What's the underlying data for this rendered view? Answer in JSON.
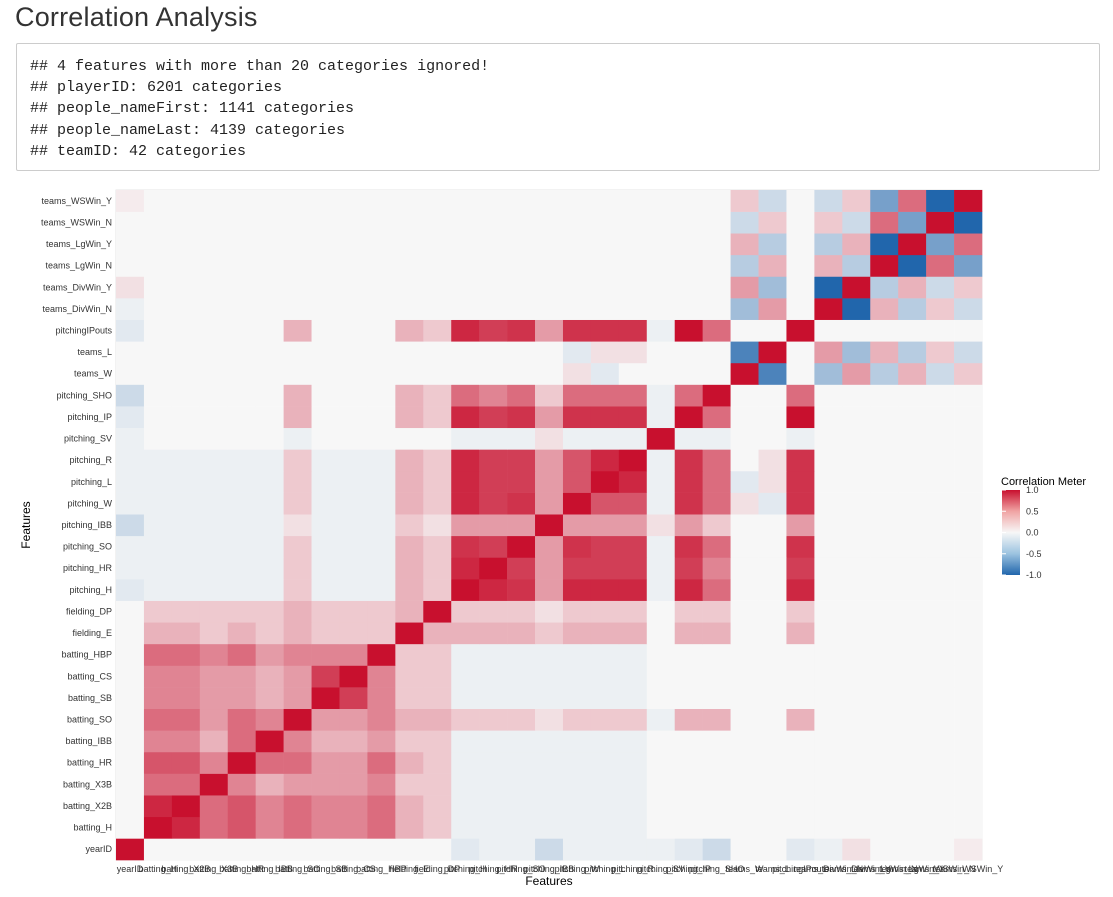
{
  "page": {
    "title": "Correlation Analysis",
    "console_lines": [
      "## 4 features with more than 20 categories ignored!",
      "## playerID: 6201 categories",
      "## people_nameFirst: 1141 categories",
      "## people_nameLast: 4139 categories",
      "## teamID: 42 categories"
    ]
  },
  "chart_data": {
    "type": "heatmap",
    "title": "",
    "xlabel": "Features",
    "ylabel": "Features",
    "features": [
      "yearID",
      "batting_H",
      "batting_X2B",
      "batting_X3B",
      "batting_HR",
      "batting_IBB",
      "batting_SO",
      "batting_SB",
      "batting_CS",
      "batting_HBP",
      "fielding_E",
      "fielding_DP",
      "pitching_H",
      "pitching_HR",
      "pitching_SO",
      "pitching_IBB",
      "pitching_W",
      "pitching_L",
      "pitching_R",
      "pitching_SV",
      "pitching_IP",
      "pitching_SHO",
      "teams_W",
      "teams_L",
      "pitchingIPouts",
      "teams_DivWin_N",
      "teams_DivWin_Y",
      "teams_LgWin_N",
      "teams_LgWin_Y",
      "teams_WSWin_N",
      "teams_WSWin_Y"
    ],
    "x_tick_labels": [
      "yearID",
      "batting_H",
      "batting_X2B",
      "batting_X3B",
      "batting_HR",
      "batting_IBB",
      "batting_SO",
      "batting_SB",
      "batting_CS",
      "batting_HBP",
      "fielding_E",
      "fielding_DP",
      "pitching_H",
      "pitching_HR",
      "pitching_SO",
      "pitching_IBB",
      "pitching_W",
      "pitching_L",
      "pitching_R",
      "pitching_SV",
      "pitching_IP",
      "pitching_SHO",
      "teams_W",
      "teams_L",
      "pitchingIPouts",
      "teams_DivWin_N",
      "teams_DivWin_Y",
      "teams_LgWin_N",
      "teams_LgWin_Y",
      "teams_WSWin_N",
      "teams_WSWin_Y"
    ],
    "value_range": [
      -1,
      1
    ],
    "legend": {
      "title": "Correlation Meter",
      "ticks": [
        "1.0",
        "0.5",
        "0.0",
        "-0.5",
        "-1.0"
      ],
      "placement": "right",
      "colors": {
        "high": "#c8102e",
        "mid": "#f7f7f7",
        "low": "#2166ac"
      }
    },
    "matrix": [
      [
        1,
        0,
        0,
        0,
        0,
        0,
        0,
        0,
        0,
        0,
        0,
        0,
        -0.1,
        -0.05,
        -0.05,
        -0.2,
        -0.05,
        -0.05,
        -0.05,
        -0.05,
        -0.1,
        -0.2,
        0,
        0,
        -0.1,
        -0.05,
        0.1,
        0,
        0,
        0,
        0.05
      ],
      [
        0,
        1,
        0.9,
        0.6,
        0.7,
        0.5,
        0.6,
        0.5,
        0.5,
        0.6,
        0.3,
        0.2,
        -0.05,
        -0.05,
        -0.05,
        -0.05,
        -0.05,
        -0.05,
        -0.05,
        0,
        0,
        0,
        0,
        0,
        0,
        0,
        0,
        0,
        0,
        0,
        0
      ],
      [
        0,
        0.9,
        1,
        0.6,
        0.7,
        0.5,
        0.6,
        0.5,
        0.5,
        0.6,
        0.3,
        0.2,
        -0.05,
        -0.05,
        -0.05,
        -0.05,
        -0.05,
        -0.05,
        -0.05,
        0,
        0,
        0,
        0,
        0,
        0,
        0,
        0,
        0,
        0,
        0,
        0
      ],
      [
        0,
        0.6,
        0.6,
        1,
        0.5,
        0.3,
        0.4,
        0.4,
        0.4,
        0.5,
        0.2,
        0.2,
        -0.05,
        -0.05,
        -0.05,
        -0.05,
        -0.05,
        -0.05,
        -0.05,
        0,
        0,
        0,
        0,
        0,
        0,
        0,
        0,
        0,
        0,
        0,
        0
      ],
      [
        0,
        0.7,
        0.7,
        0.5,
        1,
        0.6,
        0.6,
        0.4,
        0.4,
        0.6,
        0.3,
        0.2,
        -0.05,
        -0.05,
        -0.05,
        -0.05,
        -0.05,
        -0.05,
        -0.05,
        0,
        0,
        0,
        0,
        0,
        0,
        0,
        0,
        0,
        0,
        0,
        0
      ],
      [
        0,
        0.5,
        0.5,
        0.3,
        0.6,
        1,
        0.5,
        0.3,
        0.3,
        0.4,
        0.2,
        0.2,
        -0.05,
        -0.05,
        -0.05,
        -0.05,
        -0.05,
        -0.05,
        -0.05,
        0,
        0,
        0,
        0,
        0,
        0,
        0,
        0,
        0,
        0,
        0,
        0
      ],
      [
        0,
        0.6,
        0.6,
        0.4,
        0.6,
        0.5,
        1,
        0.4,
        0.4,
        0.5,
        0.3,
        0.3,
        0.2,
        0.2,
        0.2,
        0.1,
        0.2,
        0.2,
        0.2,
        -0.05,
        0.3,
        0.3,
        0,
        0,
        0.3,
        0,
        0,
        0,
        0,
        0,
        0
      ],
      [
        0,
        0.5,
        0.5,
        0.4,
        0.4,
        0.3,
        0.4,
        1,
        0.8,
        0.5,
        0.2,
        0.2,
        -0.05,
        -0.05,
        -0.05,
        -0.05,
        -0.05,
        -0.05,
        -0.05,
        0,
        0,
        0,
        0,
        0,
        0,
        0,
        0,
        0,
        0,
        0,
        0
      ],
      [
        0,
        0.5,
        0.5,
        0.4,
        0.4,
        0.3,
        0.4,
        0.8,
        1,
        0.5,
        0.2,
        0.2,
        -0.05,
        -0.05,
        -0.05,
        -0.05,
        -0.05,
        -0.05,
        -0.05,
        0,
        0,
        0,
        0,
        0,
        0,
        0,
        0,
        0,
        0,
        0,
        0
      ],
      [
        0,
        0.6,
        0.6,
        0.5,
        0.6,
        0.4,
        0.5,
        0.5,
        0.5,
        1,
        0.2,
        0.2,
        -0.05,
        -0.05,
        -0.05,
        -0.05,
        -0.05,
        -0.05,
        -0.05,
        0,
        0,
        0,
        0,
        0,
        0,
        0,
        0,
        0,
        0,
        0,
        0
      ],
      [
        0,
        0.3,
        0.3,
        0.2,
        0.3,
        0.2,
        0.3,
        0.2,
        0.2,
        0.2,
        1,
        0.3,
        0.3,
        0.3,
        0.3,
        0.2,
        0.3,
        0.3,
        0.3,
        0,
        0.3,
        0.3,
        0,
        0,
        0.3,
        0,
        0,
        0,
        0,
        0,
        0
      ],
      [
        0,
        0.2,
        0.2,
        0.2,
        0.2,
        0.2,
        0.3,
        0.2,
        0.2,
        0.2,
        0.3,
        1,
        0.2,
        0.2,
        0.2,
        0.1,
        0.2,
        0.2,
        0.2,
        0,
        0.2,
        0.2,
        0,
        0,
        0.2,
        0,
        0,
        0,
        0,
        0,
        0
      ],
      [
        -0.1,
        -0.05,
        -0.05,
        -0.05,
        -0.05,
        -0.05,
        0.2,
        -0.05,
        -0.05,
        -0.05,
        0.3,
        0.2,
        1,
        0.9,
        0.85,
        0.4,
        0.9,
        0.9,
        0.9,
        -0.05,
        0.9,
        0.6,
        0,
        0,
        0.9,
        0,
        0,
        0,
        0,
        0,
        0
      ],
      [
        -0.05,
        -0.05,
        -0.05,
        -0.05,
        -0.05,
        -0.05,
        0.2,
        -0.05,
        -0.05,
        -0.05,
        0.3,
        0.2,
        0.9,
        1,
        0.8,
        0.4,
        0.8,
        0.8,
        0.8,
        -0.05,
        0.8,
        0.5,
        0,
        0,
        0.8,
        0,
        0,
        0,
        0,
        0,
        0
      ],
      [
        -0.05,
        -0.05,
        -0.05,
        -0.05,
        -0.05,
        -0.05,
        0.2,
        -0.05,
        -0.05,
        -0.05,
        0.3,
        0.2,
        0.85,
        0.8,
        1,
        0.4,
        0.85,
        0.8,
        0.8,
        -0.05,
        0.85,
        0.6,
        0,
        0,
        0.85,
        0,
        0,
        0,
        0,
        0,
        0
      ],
      [
        -0.2,
        -0.05,
        -0.05,
        -0.05,
        -0.05,
        -0.05,
        0.1,
        -0.05,
        -0.05,
        -0.05,
        0.2,
        0.1,
        0.4,
        0.4,
        0.4,
        1,
        0.4,
        0.4,
        0.4,
        0.1,
        0.4,
        0.2,
        0,
        0,
        0.4,
        0,
        0,
        0,
        0,
        0,
        0
      ],
      [
        -0.05,
        -0.05,
        -0.05,
        -0.05,
        -0.05,
        -0.05,
        0.2,
        -0.05,
        -0.05,
        -0.05,
        0.3,
        0.2,
        0.9,
        0.8,
        0.85,
        0.4,
        1,
        0.7,
        0.7,
        -0.05,
        0.85,
        0.6,
        0.1,
        -0.1,
        0.85,
        0,
        0,
        0,
        0,
        0,
        0
      ],
      [
        -0.05,
        -0.05,
        -0.05,
        -0.05,
        -0.05,
        -0.05,
        0.2,
        -0.05,
        -0.05,
        -0.05,
        0.3,
        0.2,
        0.9,
        0.8,
        0.8,
        0.4,
        0.7,
        1,
        0.9,
        -0.05,
        0.85,
        0.6,
        -0.1,
        0.1,
        0.85,
        0,
        0,
        0,
        0,
        0,
        0
      ],
      [
        -0.05,
        -0.05,
        -0.05,
        -0.05,
        -0.05,
        -0.05,
        0.2,
        -0.05,
        -0.05,
        -0.05,
        0.3,
        0.2,
        0.9,
        0.8,
        0.8,
        0.4,
        0.7,
        0.9,
        1,
        -0.05,
        0.85,
        0.6,
        0,
        0.1,
        0.85,
        0,
        0,
        0,
        0,
        0,
        0
      ],
      [
        -0.05,
        0,
        0,
        0,
        0,
        0,
        -0.05,
        0,
        0,
        0,
        0,
        0,
        -0.05,
        -0.05,
        -0.05,
        0.1,
        -0.05,
        -0.05,
        -0.05,
        1,
        -0.05,
        -0.05,
        0,
        0,
        -0.05,
        0,
        0,
        0,
        0,
        0,
        0
      ],
      [
        -0.1,
        0,
        0,
        0,
        0,
        0,
        0.3,
        0,
        0,
        0,
        0.3,
        0.2,
        0.9,
        0.8,
        0.85,
        0.4,
        0.85,
        0.85,
        0.85,
        -0.05,
        1,
        0.6,
        0,
        0,
        1,
        0,
        0,
        0,
        0,
        0,
        0
      ],
      [
        -0.2,
        0,
        0,
        0,
        0,
        0,
        0.3,
        0,
        0,
        0,
        0.3,
        0.2,
        0.6,
        0.5,
        0.6,
        0.2,
        0.6,
        0.6,
        0.6,
        -0.05,
        0.6,
        1,
        0,
        0,
        0.6,
        0,
        0,
        0,
        0,
        0,
        0
      ],
      [
        0,
        0,
        0,
        0,
        0,
        0,
        0,
        0,
        0,
        0,
        0,
        0,
        0,
        0,
        0,
        0,
        0.1,
        -0.1,
        0,
        0,
        0,
        0,
        1,
        -0.8,
        0,
        -0.4,
        0.4,
        -0.3,
        0.3,
        -0.2,
        0.2
      ],
      [
        0,
        0,
        0,
        0,
        0,
        0,
        0,
        0,
        0,
        0,
        0,
        0,
        0,
        0,
        0,
        0,
        -0.1,
        0.1,
        0.1,
        0,
        0,
        0,
        -0.8,
        1,
        0,
        0.4,
        -0.4,
        0.3,
        -0.3,
        0.2,
        -0.2
      ],
      [
        -0.1,
        0,
        0,
        0,
        0,
        0,
        0.3,
        0,
        0,
        0,
        0.3,
        0.2,
        0.9,
        0.8,
        0.85,
        0.4,
        0.85,
        0.85,
        0.85,
        -0.05,
        1,
        0.6,
        0,
        0,
        1,
        0,
        0,
        0,
        0,
        0,
        0
      ],
      [
        -0.05,
        0,
        0,
        0,
        0,
        0,
        0,
        0,
        0,
        0,
        0,
        0,
        0,
        0,
        0,
        0,
        0,
        0,
        0,
        0,
        0,
        0,
        -0.4,
        0.4,
        0,
        1,
        -1,
        0.3,
        -0.3,
        0.2,
        -0.2
      ],
      [
        0.1,
        0,
        0,
        0,
        0,
        0,
        0,
        0,
        0,
        0,
        0,
        0,
        0,
        0,
        0,
        0,
        0,
        0,
        0,
        0,
        0,
        0,
        0.4,
        -0.4,
        0,
        -1,
        1,
        -0.3,
        0.3,
        -0.2,
        0.2
      ],
      [
        0,
        0,
        0,
        0,
        0,
        0,
        0,
        0,
        0,
        0,
        0,
        0,
        0,
        0,
        0,
        0,
        0,
        0,
        0,
        0,
        0,
        0,
        -0.3,
        0.3,
        0,
        0.3,
        -0.3,
        1,
        -1,
        0.6,
        -0.6
      ],
      [
        0,
        0,
        0,
        0,
        0,
        0,
        0,
        0,
        0,
        0,
        0,
        0,
        0,
        0,
        0,
        0,
        0,
        0,
        0,
        0,
        0,
        0,
        0.3,
        -0.3,
        0,
        -0.3,
        0.3,
        -1,
        1,
        -0.6,
        0.6
      ],
      [
        0,
        0,
        0,
        0,
        0,
        0,
        0,
        0,
        0,
        0,
        0,
        0,
        0,
        0,
        0,
        0,
        0,
        0,
        0,
        0,
        0,
        0,
        -0.2,
        0.2,
        0,
        0.2,
        -0.2,
        0.6,
        -0.6,
        1,
        -1
      ],
      [
        0.05,
        0,
        0,
        0,
        0,
        0,
        0,
        0,
        0,
        0,
        0,
        0,
        0,
        0,
        0,
        0,
        0,
        0,
        0,
        0,
        0,
        0,
        0.2,
        -0.2,
        0,
        -0.2,
        0.2,
        -0.6,
        0.6,
        -1,
        1
      ]
    ]
  }
}
